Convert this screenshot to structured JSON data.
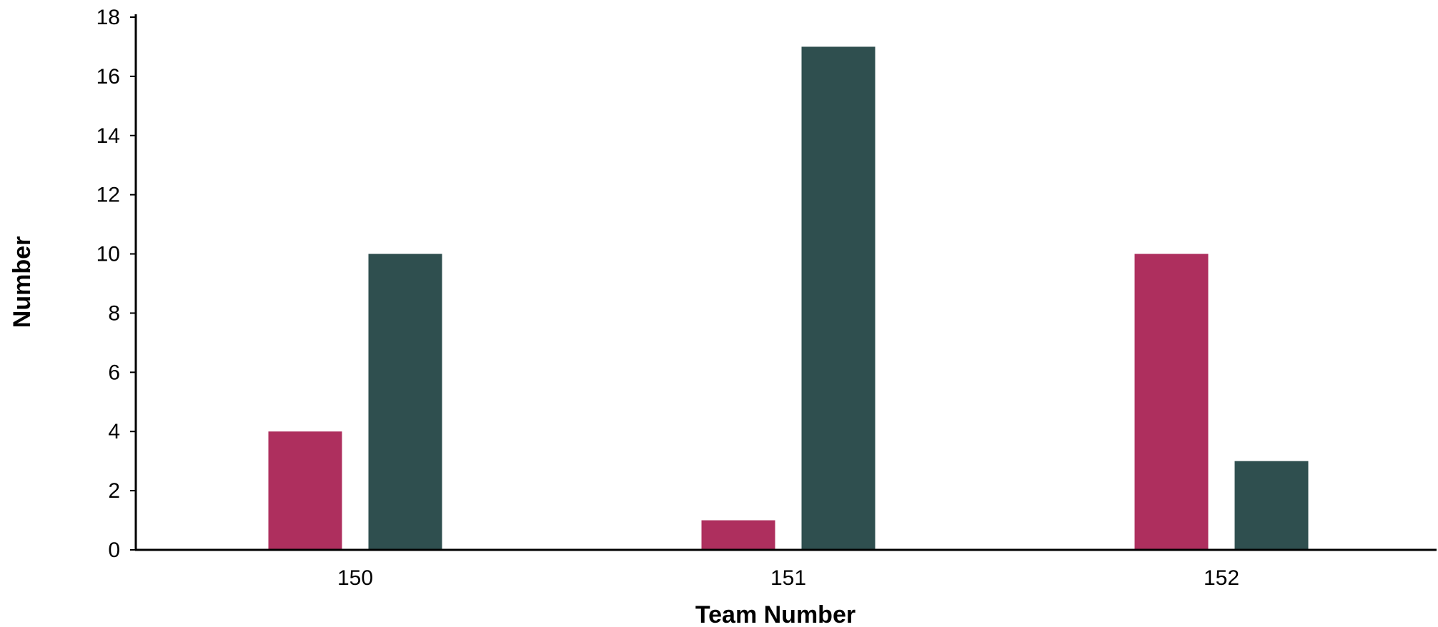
{
  "chart_data": {
    "type": "bar",
    "title": "",
    "xlabel": "Team Number",
    "ylabel": "Number",
    "categories": [
      "150",
      "151",
      "152"
    ],
    "series": [
      {
        "color": "#ae2f5e",
        "values": [
          4,
          1,
          10
        ]
      },
      {
        "color": "#2f4f4f",
        "values": [
          10,
          17,
          3
        ]
      }
    ],
    "ylim": [
      0,
      18
    ],
    "yticks": [
      "0",
      "2",
      "4",
      "6",
      "8",
      "10",
      "12",
      "14",
      "16",
      "18"
    ],
    "grid": false,
    "legend": "none"
  }
}
